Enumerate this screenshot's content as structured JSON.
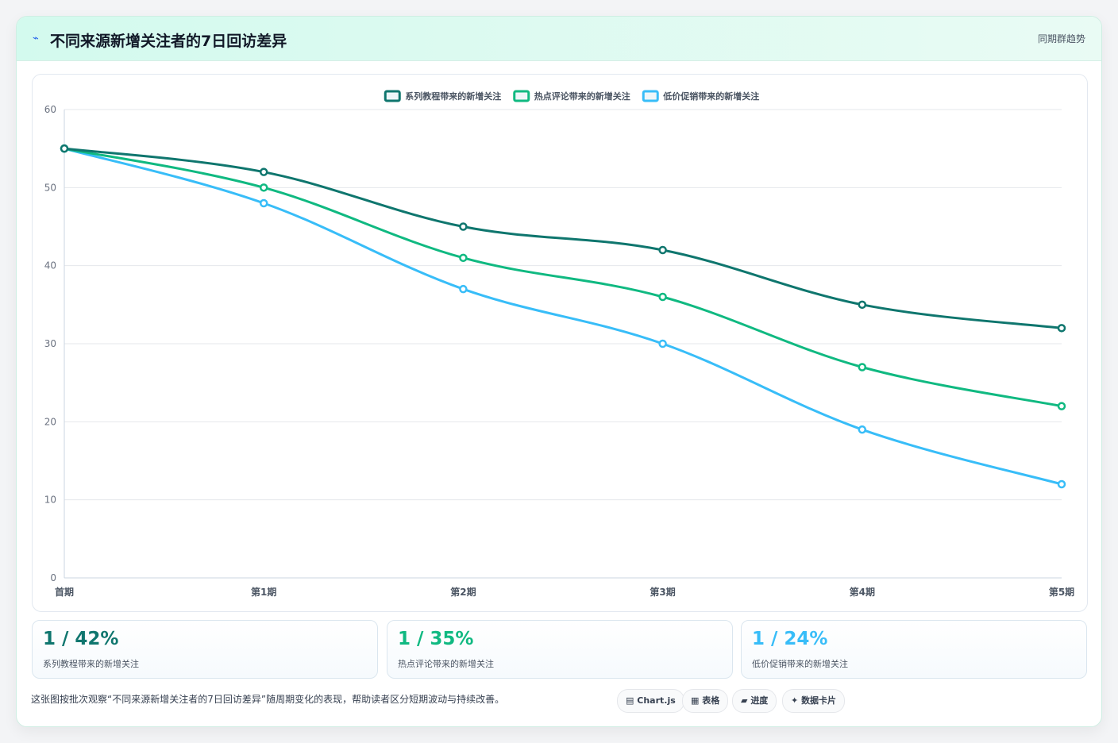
{
  "header": {
    "icon": "lightning-icon",
    "title": "不同来源新增关注者的7日回访差异",
    "tag": "同期群趋势"
  },
  "chart_data": {
    "type": "line",
    "categories": [
      "首期",
      "第1期",
      "第2期",
      "第3期",
      "第4期",
      "第5期"
    ],
    "series": [
      {
        "name": "系列教程带来的新增关注",
        "color": "#0f766e",
        "values": [
          55,
          52,
          45,
          42,
          35,
          32
        ]
      },
      {
        "name": "热点评论带来的新增关注",
        "color": "#10b981",
        "values": [
          55,
          50,
          41,
          36,
          27,
          22
        ]
      },
      {
        "name": "低价促销带来的新增关注",
        "color": "#38bdf8",
        "values": [
          55,
          48,
          37,
          30,
          19,
          12
        ]
      }
    ],
    "ylim": [
      0,
      60
    ],
    "yticks": [
      0,
      10,
      20,
      30,
      40,
      50,
      60
    ],
    "grid": true,
    "legend": "top-center",
    "smooth": true
  },
  "stats": [
    {
      "value": "1 / 42%",
      "label": "系列教程带来的新增关注",
      "color": "#0f766e"
    },
    {
      "value": "1 / 35%",
      "label": "热点评论带来的新增关注",
      "color": "#10b981"
    },
    {
      "value": "1 / 24%",
      "label": "低价促销带来的新增关注",
      "color": "#38bdf8"
    }
  ],
  "footer": {
    "note": "这张图按批次观察“不同来源新增关注者的7日回访差异”随周期变化的表现，帮助读者区分短期波动与持续改善。",
    "pills": [
      {
        "icon": "▤",
        "label": "Chart.js"
      },
      {
        "icon": "▦",
        "label": "表格"
      },
      {
        "icon": "▰",
        "label": "进度"
      },
      {
        "icon": "✦",
        "label": "数据卡片"
      }
    ]
  }
}
